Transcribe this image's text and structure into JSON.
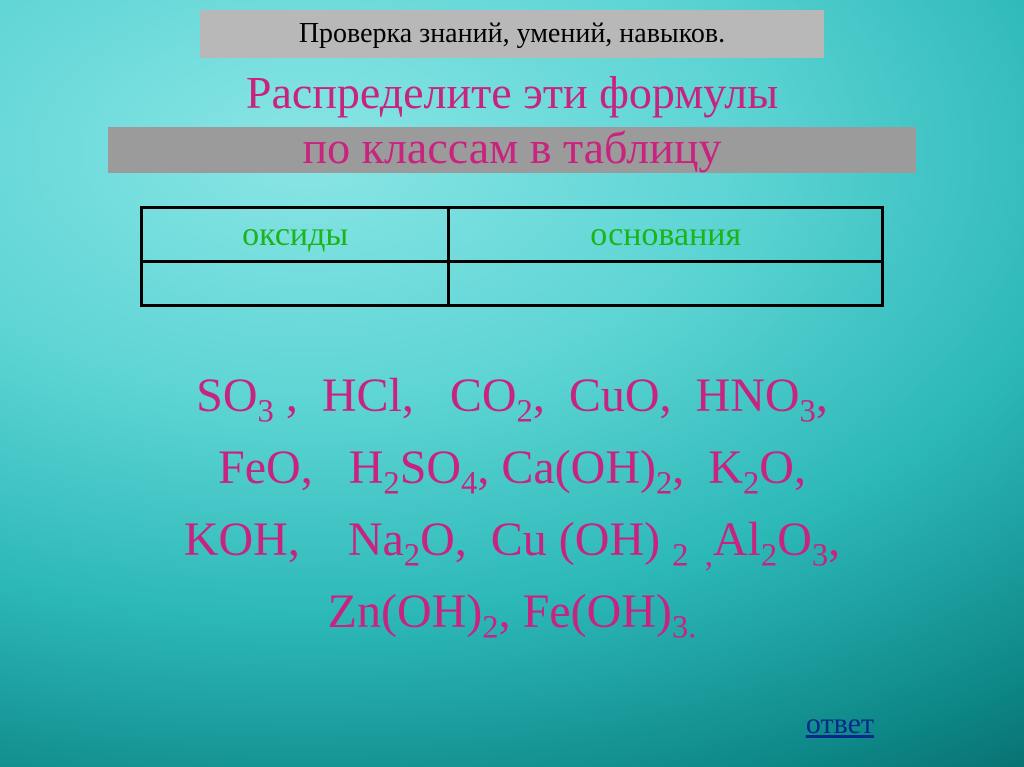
{
  "header": {
    "text": "Проверка знаний, умений, навыков.",
    "bg_color": "#b8b8b8",
    "text_color": "#000000",
    "font_size": 28
  },
  "title": {
    "line1": "Распределите эти формулы",
    "line2": "по классам в таблицу",
    "color": "#c8237f",
    "font_size": 46,
    "bar_color": "#9b9b9b"
  },
  "table": {
    "columns": [
      "оксиды",
      "основания"
    ],
    "rows": [
      [
        "",
        ""
      ]
    ],
    "header_color": "#1bb51b",
    "header_fontsize": 34,
    "border_color": "#000000",
    "border_width": 3,
    "col_widths": [
      "50%",
      "50%"
    ]
  },
  "formulas": {
    "color": "#c8237f",
    "font_size": 48,
    "items": [
      {
        "text": "SO",
        "sub": "3",
        "suffix": " ,"
      },
      {
        "text": "HCl,",
        "sub": ""
      },
      {
        "text": "CO",
        "sub": "2",
        "suffix": ","
      },
      {
        "text": "CuO,",
        "sub": ""
      },
      {
        "text": "HNO",
        "sub": "3",
        "suffix": ","
      },
      {
        "text": "FeO,",
        "sub": ""
      },
      {
        "text": "H",
        "sub": "2",
        "suffix": ""
      },
      {
        "text": "SO",
        "sub": "4",
        "suffix": ","
      },
      {
        "text": "Ca(OH)",
        "sub": "2",
        "suffix": ","
      },
      {
        "text": "K",
        "sub": "2",
        "suffix": ""
      },
      {
        "text": "O,",
        "sub": ""
      },
      {
        "text": "KOH,",
        "sub": ""
      },
      {
        "text": "Na",
        "sub": "2",
        "suffix": ""
      },
      {
        "text": "O,",
        "sub": ""
      },
      {
        "text": "Cu (OH) ",
        "sub": "2",
        "suffix": " ,"
      },
      {
        "text": "Al",
        "sub": "2",
        "suffix": ""
      },
      {
        "text": "O",
        "sub": "3",
        "suffix": ","
      },
      {
        "text": "Zn(OH)",
        "sub": "2",
        "suffix": ","
      },
      {
        "text": "Fe(OH)",
        "sub": "3.",
        "suffix": ""
      }
    ],
    "line1_html": "SO<sub>3</sub> ,&nbsp;&nbsp;HCl,&nbsp;&nbsp;&nbsp;CO<sub>2</sub>,&nbsp;&nbsp;CuO,&nbsp;&nbsp;HNO<sub>3</sub>,",
    "line2_html": "FeO,&nbsp;&nbsp;&nbsp;H<sub>2</sub>SO<sub>4</sub>, Ca(OH)<sub>2</sub>,&nbsp;&nbsp;K<sub>2</sub>O,",
    "line3_html": "KOH,&nbsp;&nbsp;&nbsp;&nbsp;Na<sub>2</sub>O,&nbsp;&nbsp;Cu (OH) <sub>2&nbsp;&nbsp;,</sub>Al<sub>2</sub>O<sub>3</sub>,",
    "line4_html": "Zn(OH)<sub>2</sub>, Fe(OH)<sub>3.</sub>"
  },
  "answer": {
    "label": "ответ",
    "color": "#062a8a",
    "font_size": 30
  },
  "background": {
    "gradient_stops": [
      "#8ae5e5",
      "#5dd4d4",
      "#2db8b8",
      "#0d8686",
      "#055858"
    ]
  }
}
